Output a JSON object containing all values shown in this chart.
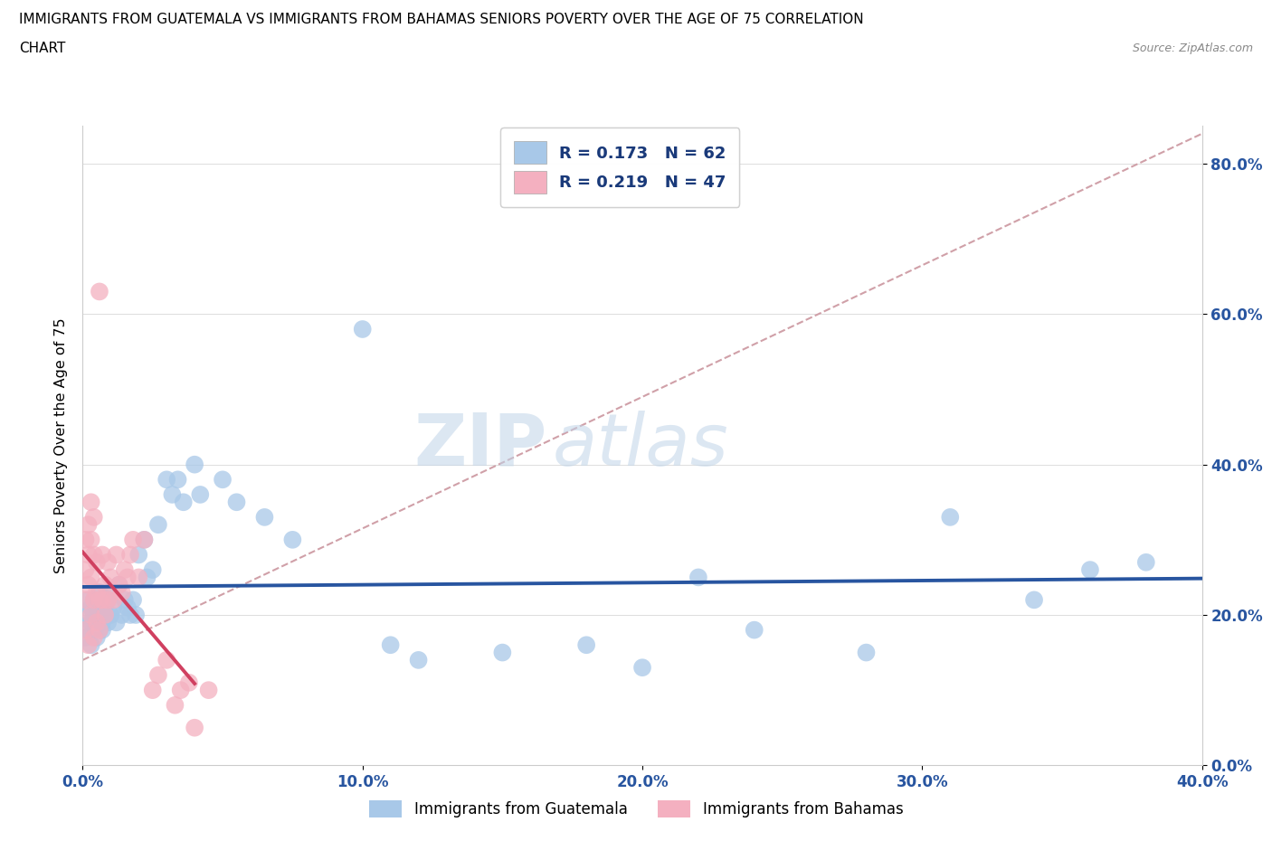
{
  "title_line1": "IMMIGRANTS FROM GUATEMALA VS IMMIGRANTS FROM BAHAMAS SENIORS POVERTY OVER THE AGE OF 75 CORRELATION",
  "title_line2": "CHART",
  "source": "Source: ZipAtlas.com",
  "ylabel": "Seniors Poverty Over the Age of 75",
  "xlim": [
    0.0,
    0.4
  ],
  "ylim": [
    0.0,
    0.85
  ],
  "xticks": [
    0.0,
    0.1,
    0.2,
    0.3,
    0.4
  ],
  "xtick_labels": [
    "0.0%",
    "10.0%",
    "20.0%",
    "30.0%",
    "40.0%"
  ],
  "ytick_labels": [
    "0.0%",
    "20.0%",
    "40.0%",
    "60.0%",
    "80.0%"
  ],
  "yticks": [
    0.0,
    0.2,
    0.4,
    0.6,
    0.8
  ],
  "guatemala_color": "#a8c8e8",
  "bahamas_color": "#f4b0c0",
  "reg_guatemala_color": "#2855a0",
  "reg_bahamas_color": "#d04060",
  "dashed_color": "#d0a0a8",
  "legend_r_guatemala": "R = 0.173",
  "legend_n_guatemala": "N = 62",
  "legend_r_bahamas": "R = 0.219",
  "legend_n_bahamas": "N = 47",
  "watermark_zip": "ZIP",
  "watermark_atlas": "atlas",
  "guatemala_label": "Immigrants from Guatemala",
  "bahamas_label": "Immigrants from Bahamas",
  "guatemala_x": [
    0.001,
    0.001,
    0.002,
    0.002,
    0.003,
    0.003,
    0.003,
    0.004,
    0.004,
    0.004,
    0.005,
    0.005,
    0.005,
    0.006,
    0.006,
    0.006,
    0.007,
    0.007,
    0.007,
    0.008,
    0.008,
    0.009,
    0.009,
    0.01,
    0.01,
    0.011,
    0.012,
    0.013,
    0.014,
    0.015,
    0.016,
    0.017,
    0.018,
    0.019,
    0.02,
    0.022,
    0.023,
    0.025,
    0.027,
    0.03,
    0.032,
    0.034,
    0.036,
    0.04,
    0.042,
    0.05,
    0.055,
    0.065,
    0.075,
    0.1,
    0.11,
    0.12,
    0.15,
    0.18,
    0.2,
    0.22,
    0.24,
    0.28,
    0.31,
    0.34,
    0.36,
    0.38
  ],
  "guatemala_y": [
    0.2,
    0.17,
    0.22,
    0.18,
    0.19,
    0.21,
    0.16,
    0.18,
    0.2,
    0.22,
    0.17,
    0.21,
    0.19,
    0.18,
    0.2,
    0.23,
    0.19,
    0.22,
    0.18,
    0.21,
    0.2,
    0.19,
    0.22,
    0.2,
    0.23,
    0.21,
    0.19,
    0.24,
    0.2,
    0.22,
    0.21,
    0.2,
    0.22,
    0.2,
    0.28,
    0.3,
    0.25,
    0.26,
    0.32,
    0.38,
    0.36,
    0.38,
    0.35,
    0.4,
    0.36,
    0.38,
    0.35,
    0.33,
    0.3,
    0.58,
    0.16,
    0.14,
    0.15,
    0.16,
    0.13,
    0.25,
    0.18,
    0.15,
    0.33,
    0.22,
    0.26,
    0.27
  ],
  "bahamas_x": [
    0.001,
    0.001,
    0.001,
    0.001,
    0.002,
    0.002,
    0.002,
    0.002,
    0.003,
    0.003,
    0.003,
    0.003,
    0.004,
    0.004,
    0.004,
    0.004,
    0.005,
    0.005,
    0.005,
    0.006,
    0.006,
    0.006,
    0.007,
    0.007,
    0.008,
    0.008,
    0.009,
    0.009,
    0.01,
    0.011,
    0.012,
    0.013,
    0.014,
    0.015,
    0.016,
    0.017,
    0.018,
    0.02,
    0.022,
    0.025,
    0.027,
    0.03,
    0.033,
    0.035,
    0.038,
    0.04,
    0.045
  ],
  "bahamas_y": [
    0.3,
    0.26,
    0.22,
    0.18,
    0.32,
    0.28,
    0.24,
    0.16,
    0.35,
    0.3,
    0.25,
    0.2,
    0.33,
    0.28,
    0.22,
    0.17,
    0.27,
    0.23,
    0.19,
    0.63,
    0.22,
    0.18,
    0.28,
    0.22,
    0.24,
    0.2,
    0.27,
    0.22,
    0.25,
    0.22,
    0.28,
    0.24,
    0.23,
    0.26,
    0.25,
    0.28,
    0.3,
    0.25,
    0.3,
    0.1,
    0.12,
    0.14,
    0.08,
    0.1,
    0.11,
    0.05,
    0.1
  ]
}
